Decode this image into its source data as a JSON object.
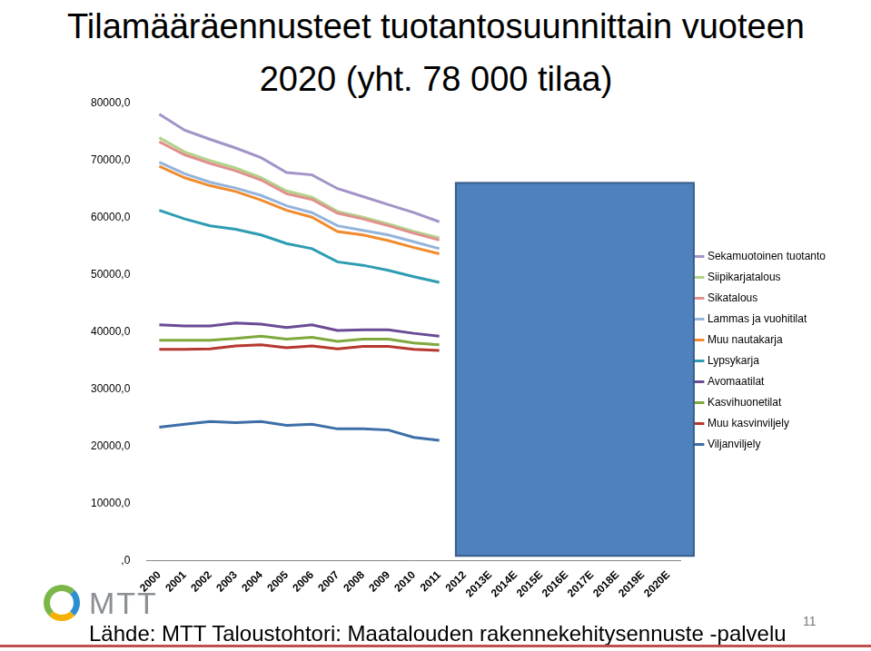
{
  "chart_data": {
    "type": "line",
    "title": "Tilamääräennusteet tuotantosuunnittain vuoteen 2020 (yht. 78 000 tilaa)",
    "categories": [
      "2000",
      "2001",
      "2002",
      "2003",
      "2004",
      "2005",
      "2006",
      "2007",
      "2008",
      "2009",
      "2010",
      "2011",
      "2012",
      "2013E",
      "2014E",
      "2015E",
      "2016E",
      "2017E",
      "2018E",
      "2019E",
      "2020E"
    ],
    "series": [
      {
        "name": "Sekamuotoinen tuotanto",
        "color": "#a393c7",
        "values": [
          4100,
          3800,
          3700,
          3500,
          3500,
          3200,
          3900,
          4000,
          3600,
          3400,
          3300,
          2800,
          null,
          null,
          null,
          null,
          null,
          null,
          null,
          null,
          null
        ]
      },
      {
        "name": "Siipikarjatalous",
        "color": "#b3d38a",
        "values": [
          700,
          500,
          500,
          500,
          400,
          500,
          400,
          300,
          300,
          300,
          300,
          400,
          null,
          null,
          null,
          null,
          null,
          null,
          null,
          null,
          null
        ]
      },
      {
        "name": "Sikatalous",
        "color": "#e0908e",
        "values": [
          3600,
          3300,
          3300,
          3000,
          2700,
          2100,
          2300,
          2200,
          2000,
          1600,
          1500,
          1500,
          null,
          null,
          null,
          null,
          null,
          null,
          null,
          null,
          null
        ]
      },
      {
        "name": "Lammas ja vuohitilat",
        "color": "#94b4dc",
        "values": [
          700,
          700,
          600,
          600,
          800,
          800,
          800,
          1000,
          800,
          1000,
          1000,
          900,
          null,
          null,
          null,
          null,
          null,
          null,
          null,
          null,
          null
        ]
      },
      {
        "name": "Muu nautakarja",
        "color": "#f08c2e",
        "values": [
          7700,
          7200,
          7000,
          6600,
          6100,
          5800,
          5500,
          5300,
          5300,
          5200,
          5100,
          5000,
          null,
          null,
          null,
          null,
          null,
          null,
          null,
          null,
          null
        ]
      },
      {
        "name": "Lypsykarja",
        "color": "#2e9cb3",
        "values": [
          20000,
          18700,
          17500,
          16400,
          15600,
          14700,
          13300,
          12000,
          11300,
          10400,
          9900,
          9400,
          null,
          null,
          null,
          null,
          null,
          null,
          null,
          null,
          null
        ]
      },
      {
        "name": "Avomaatilat",
        "color": "#6a4b94",
        "values": [
          2700,
          2500,
          2500,
          2700,
          2100,
          2000,
          2200,
          1900,
          1600,
          1600,
          1700,
          1500,
          null,
          null,
          null,
          null,
          null,
          null,
          null,
          null,
          null
        ]
      },
      {
        "name": "Kasvihuonetilat",
        "color": "#7ea83d",
        "values": [
          1600,
          1600,
          1500,
          1300,
          1500,
          1500,
          1500,
          1300,
          1300,
          1300,
          1100,
          1000,
          null,
          null,
          null,
          null,
          null,
          null,
          null,
          null,
          null
        ]
      },
      {
        "name": "Muu kasvinviljely",
        "color": "#b5382f",
        "values": [
          13600,
          13100,
          12700,
          13400,
          13400,
          13600,
          13700,
          14000,
          14400,
          14600,
          15400,
          15700,
          null,
          null,
          null,
          null,
          null,
          null,
          null,
          null,
          null
        ]
      },
      {
        "name": "Viljanviljely",
        "color": "#3d6ea8",
        "values": [
          23300,
          23800,
          24300,
          24100,
          24300,
          23600,
          23800,
          23000,
          23000,
          22800,
          21500,
          21000,
          null,
          null,
          null,
          null,
          null,
          null,
          null,
          null,
          null
        ]
      }
    ],
    "ylim": [
      0,
      80000
    ],
    "yticks": [
      {
        "value": 0,
        "label": ",0"
      },
      {
        "value": 10000,
        "label": "10000,0"
      },
      {
        "value": 20000,
        "label": "20000,0"
      },
      {
        "value": 30000,
        "label": "30000,0"
      },
      {
        "value": 40000,
        "label": "40000,0"
      },
      {
        "value": 50000,
        "label": "50000,0"
      },
      {
        "value": 60000,
        "label": "60000,0"
      },
      {
        "value": 70000,
        "label": "70000,0"
      },
      {
        "value": 80000,
        "label": "80000,0"
      }
    ],
    "stacked": true,
    "grid": false,
    "legend": "right"
  },
  "page": {
    "logo": "MTT",
    "source": "Lähde: MTT Taloustohtori: Maatalouden rakennekehitysennuste -palvelu",
    "page_number": "11"
  }
}
